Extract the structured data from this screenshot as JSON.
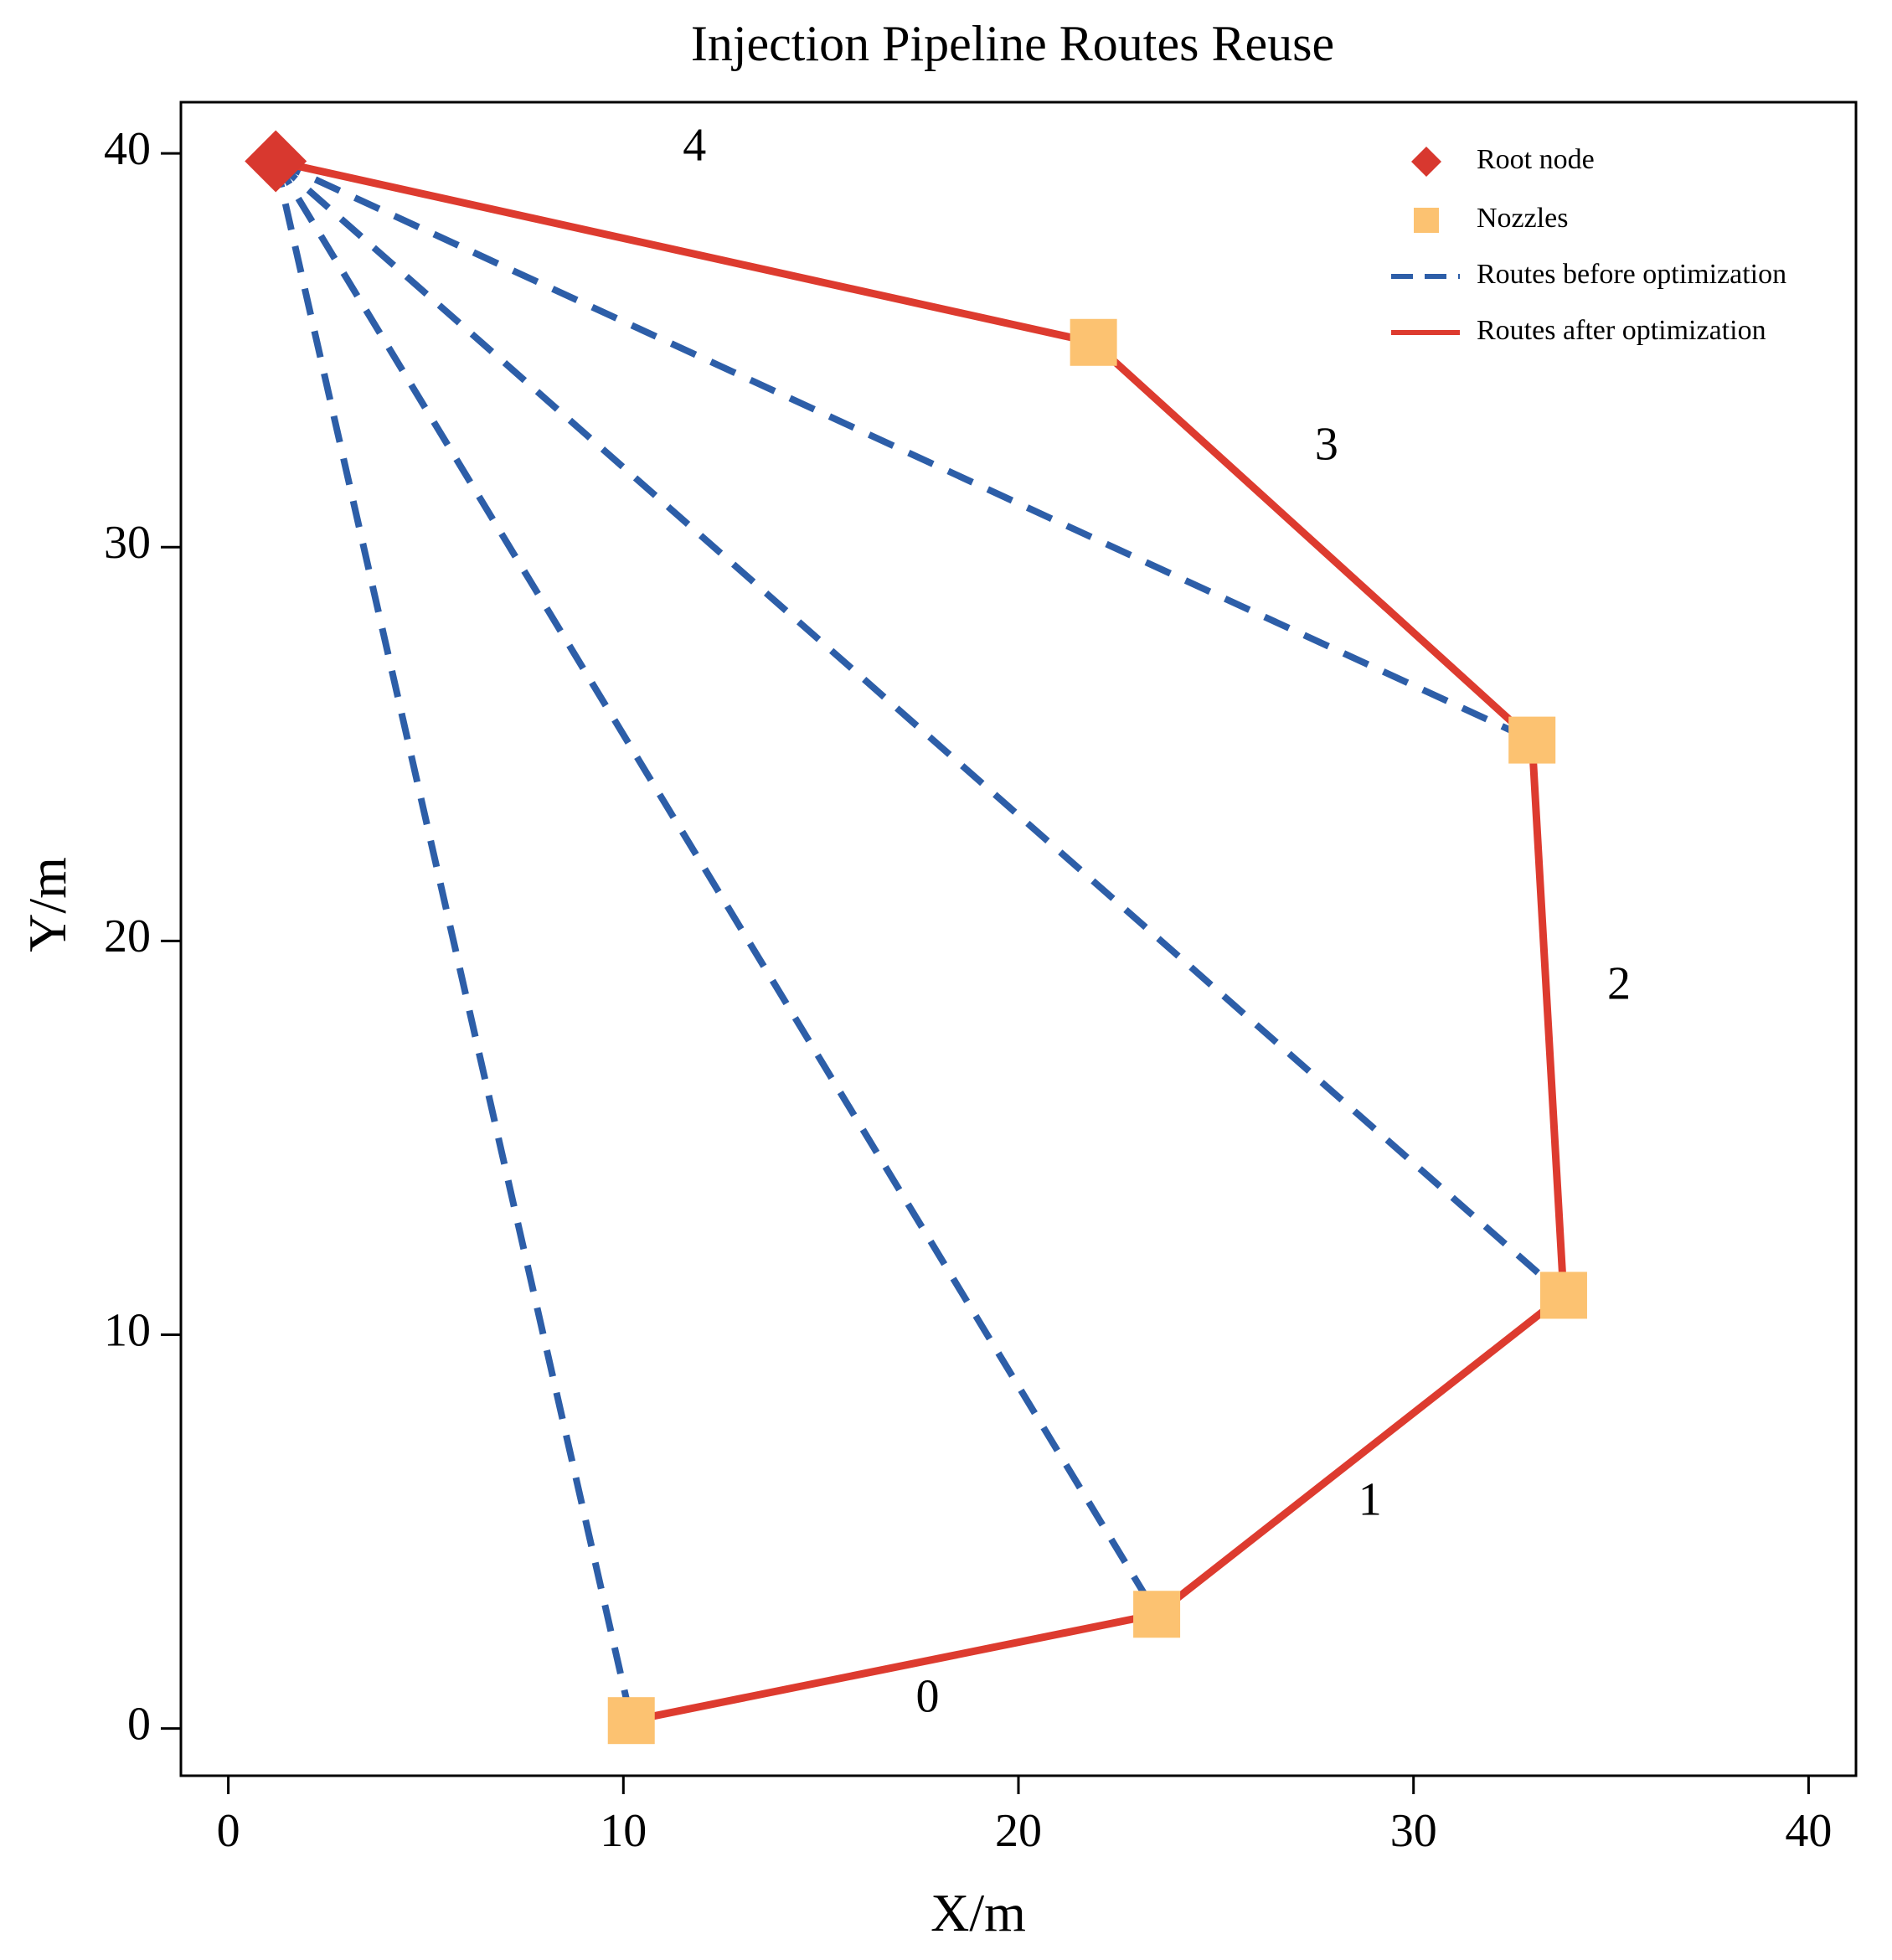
{
  "chart_data": {
    "type": "scatter",
    "title": "Injection Pipeline Routes Reuse",
    "xlabel": "X/m",
    "ylabel": "Y/m",
    "xlim": [
      -1.2,
      41.2
    ],
    "ylim": [
      -1.2,
      41.3
    ],
    "xticks": [
      0,
      10,
      20,
      30,
      40
    ],
    "yticks": [
      0,
      10,
      20,
      30,
      40
    ],
    "grid": false,
    "legend_position": "top-right",
    "colors": {
      "root": "#d8382f",
      "nozzle": "#fcc271",
      "before": "#2d5ea8",
      "after": "#dd3b2f"
    },
    "root_node": {
      "x": 1.2,
      "y": 39.8
    },
    "nozzles": [
      {
        "x": 10.2,
        "y": 0.2
      },
      {
        "x": 23.5,
        "y": 2.9
      },
      {
        "x": 33.8,
        "y": 11.0
      },
      {
        "x": 33.0,
        "y": 25.1
      },
      {
        "x": 21.9,
        "y": 35.2
      }
    ],
    "series": [
      {
        "name": "Root node",
        "type": "marker"
      },
      {
        "name": "Nozzles",
        "type": "marker"
      },
      {
        "name": "Routes before optimization",
        "type": "dashed-line"
      },
      {
        "name": "Routes after optimization",
        "type": "solid-line"
      }
    ],
    "after_route_order": [
      0,
      1,
      2,
      3,
      4
    ],
    "segment_labels": [
      {
        "text": "0",
        "x": 17.7,
        "y": 0.7
      },
      {
        "text": "1",
        "x": 28.9,
        "y": 5.7
      },
      {
        "text": "2",
        "x": 35.2,
        "y": 18.8
      },
      {
        "text": "3",
        "x": 27.8,
        "y": 32.5
      },
      {
        "text": "4",
        "x": 11.8,
        "y": 40.1
      }
    ]
  }
}
